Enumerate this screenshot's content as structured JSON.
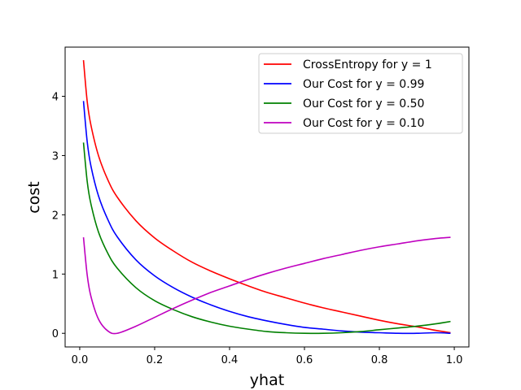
{
  "chart_data": {
    "type": "line",
    "title": "",
    "xlabel": "yhat",
    "ylabel": "cost",
    "xlim": [
      -0.039,
      1.039
    ],
    "ylim": [
      -0.23,
      4.83
    ],
    "x_ticks": [
      0.0,
      0.2,
      0.4,
      0.6,
      0.8,
      1.0
    ],
    "x_tick_labels": [
      "0.0",
      "0.2",
      "0.4",
      "0.6",
      "0.8",
      "1.0"
    ],
    "y_ticks": [
      0,
      1,
      2,
      3,
      4
    ],
    "y_tick_labels": [
      "0",
      "1",
      "2",
      "3",
      "4"
    ],
    "grid": false,
    "legend_position": "top-right",
    "x": [
      0.01,
      0.02,
      0.03,
      0.05,
      0.075,
      0.1,
      0.15,
      0.2,
      0.25,
      0.3,
      0.35,
      0.4,
      0.45,
      0.5,
      0.55,
      0.6,
      0.65,
      0.7,
      0.75,
      0.8,
      0.85,
      0.9,
      0.95,
      0.99
    ],
    "series": [
      {
        "name": "CrossEntropy for y = 1",
        "color": "#ff0000",
        "values": [
          4.61,
          3.91,
          3.51,
          3.0,
          2.59,
          2.3,
          1.9,
          1.61,
          1.39,
          1.2,
          1.05,
          0.92,
          0.8,
          0.69,
          0.6,
          0.51,
          0.43,
          0.36,
          0.29,
          0.22,
          0.16,
          0.11,
          0.05,
          0.01
        ]
      },
      {
        "name": "Our Cost for y = 0.99",
        "color": "#0000ff",
        "values": [
          3.92,
          3.23,
          2.82,
          2.32,
          1.92,
          1.63,
          1.24,
          0.97,
          0.77,
          0.61,
          0.48,
          0.37,
          0.28,
          0.21,
          0.15,
          0.1,
          0.07,
          0.04,
          0.02,
          0.01,
          0.0,
          0.0,
          0.01,
          0.0
        ]
      },
      {
        "name": "Our Cost for y = 0.50",
        "color": "#008000",
        "values": [
          3.22,
          2.56,
          2.18,
          1.71,
          1.35,
          1.1,
          0.77,
          0.55,
          0.4,
          0.28,
          0.19,
          0.12,
          0.07,
          0.03,
          0.01,
          0.0,
          0.0,
          0.01,
          0.03,
          0.06,
          0.09,
          0.12,
          0.16,
          0.2
        ]
      },
      {
        "name": "Our Cost for y = 0.10",
        "color": "#bf00bf",
        "values": [
          1.62,
          0.98,
          0.62,
          0.24,
          0.04,
          0.0,
          0.12,
          0.27,
          0.42,
          0.56,
          0.69,
          0.8,
          0.91,
          1.01,
          1.1,
          1.18,
          1.26,
          1.33,
          1.4,
          1.46,
          1.51,
          1.56,
          1.6,
          1.62
        ]
      }
    ]
  }
}
